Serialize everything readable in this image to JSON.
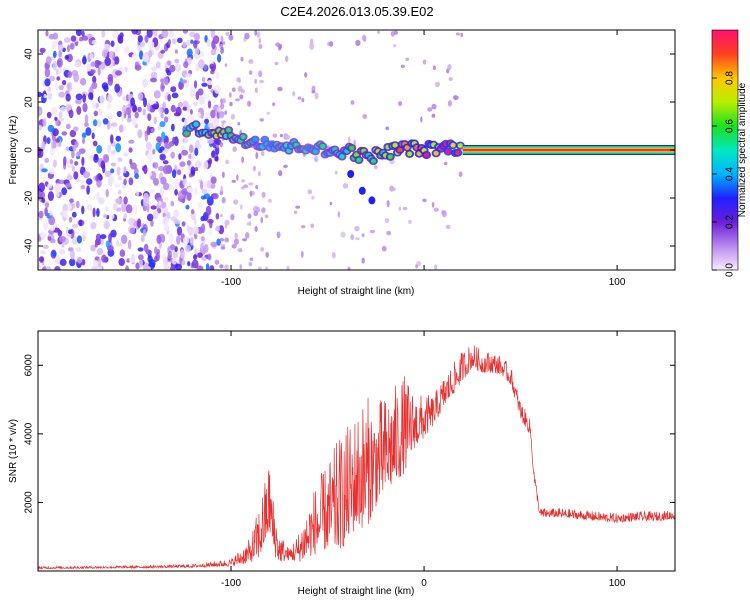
{
  "title": "C2E4.2026.013.05.39.E02",
  "colors": {
    "trace": "#e83030",
    "frame": "#000000"
  },
  "chart_data": [
    {
      "type": "heatmap",
      "xlabel": "Height of straight line (km)",
      "ylabel": "Frequency (Hz)",
      "xlim": [
        -200,
        130
      ],
      "ylim": [
        -50,
        50
      ],
      "xticks": [
        -100,
        0,
        100
      ],
      "xtick_labels": [
        "-100",
        "",
        "100"
      ],
      "yticks": [
        -40,
        -20,
        0,
        20,
        40
      ],
      "ytick_labels": [
        "-40",
        "-20",
        "0",
        "20",
        "40"
      ],
      "colorbar": {
        "label": "Normalized spectral amplitude",
        "range": [
          0,
          1
        ],
        "ticks": [
          0.0,
          0.2,
          0.4,
          0.6,
          0.8
        ],
        "tick_labels": [
          "0.0",
          "0.2",
          "0.4",
          "0.6",
          "0.8"
        ]
      },
      "features": {
        "noise_x_range": [
          -200,
          -105
        ],
        "noise_density": 0.6,
        "noise_amplitude_max": 0.35,
        "sparse_noise_x_range": [
          -105,
          20
        ],
        "track": [
          [
            -123,
            9
          ],
          [
            -110,
            8
          ],
          [
            -100,
            6
          ],
          [
            -90,
            4
          ],
          [
            -80,
            3
          ],
          [
            -70,
            1
          ],
          [
            -60,
            2
          ],
          [
            -50,
            -1
          ],
          [
            -40,
            0
          ],
          [
            -30,
            -3
          ],
          [
            -20,
            -1
          ],
          [
            -10,
            1
          ],
          [
            0,
            0
          ],
          [
            10,
            1
          ],
          [
            20,
            1
          ]
        ],
        "track_amplitude": [
          0.5,
          0.65,
          0.55,
          0.5,
          0.45,
          0.5,
          0.45,
          0.5,
          0.55,
          0.6,
          0.7,
          0.8,
          0.85,
          0.9,
          0.9
        ],
        "branch": [
          [
            -38,
            -10
          ],
          [
            -32,
            -17
          ],
          [
            -27,
            -21
          ]
        ],
        "carrier": {
          "x_range": [
            20,
            130
          ],
          "frequency": 0,
          "amplitude": 1.0
        }
      }
    },
    {
      "type": "line",
      "xlabel": "Height of straight line (km)",
      "ylabel": "SNR (10 * v/v)",
      "xlim": [
        -200,
        130
      ],
      "ylim": [
        0,
        7000
      ],
      "xticks": [
        -100,
        0,
        100
      ],
      "xtick_labels": [
        "-100",
        "0",
        "100"
      ],
      "yticks": [
        2000,
        4000,
        6000
      ],
      "ytick_labels": [
        "2000",
        "4000",
        "6000"
      ],
      "series": [
        {
          "name": "SNR",
          "x": [
            -200,
            -150,
            -120,
            -100,
            -90,
            -85,
            -80,
            -78,
            -75,
            -70,
            -65,
            -60,
            -55,
            -50,
            -45,
            -40,
            -35,
            -30,
            -25,
            -20,
            -15,
            -10,
            -5,
            0,
            5,
            10,
            15,
            20,
            25,
            30,
            35,
            40,
            45,
            50,
            55,
            57,
            60,
            70,
            80,
            90,
            100,
            110,
            120,
            130
          ],
          "envelope": [
            100,
            120,
            150,
            250,
            600,
            1200,
            2200,
            1300,
            700,
            500,
            700,
            1200,
            1600,
            1900,
            2200,
            2500,
            3000,
            3200,
            3400,
            3700,
            4000,
            4300,
            4400,
            4500,
            4700,
            5200,
            5600,
            6000,
            6300,
            6100,
            6100,
            6000,
            5700,
            4700,
            4200,
            2800,
            1700,
            1700,
            1650,
            1600,
            1550,
            1600,
            1600,
            1650
          ],
          "spike_amplitude": [
            40,
            40,
            50,
            120,
            400,
            900,
            1200,
            900,
            500,
            200,
            500,
            900,
            1200,
            1400,
            1800,
            1900,
            1900,
            2200,
            1700,
            1600,
            1600,
            1600,
            900,
            700,
            500,
            500,
            500,
            500,
            400,
            350,
            350,
            300,
            300,
            300,
            250,
            200,
            150,
            150,
            150,
            150,
            150,
            150,
            150,
            150
          ]
        }
      ]
    }
  ]
}
